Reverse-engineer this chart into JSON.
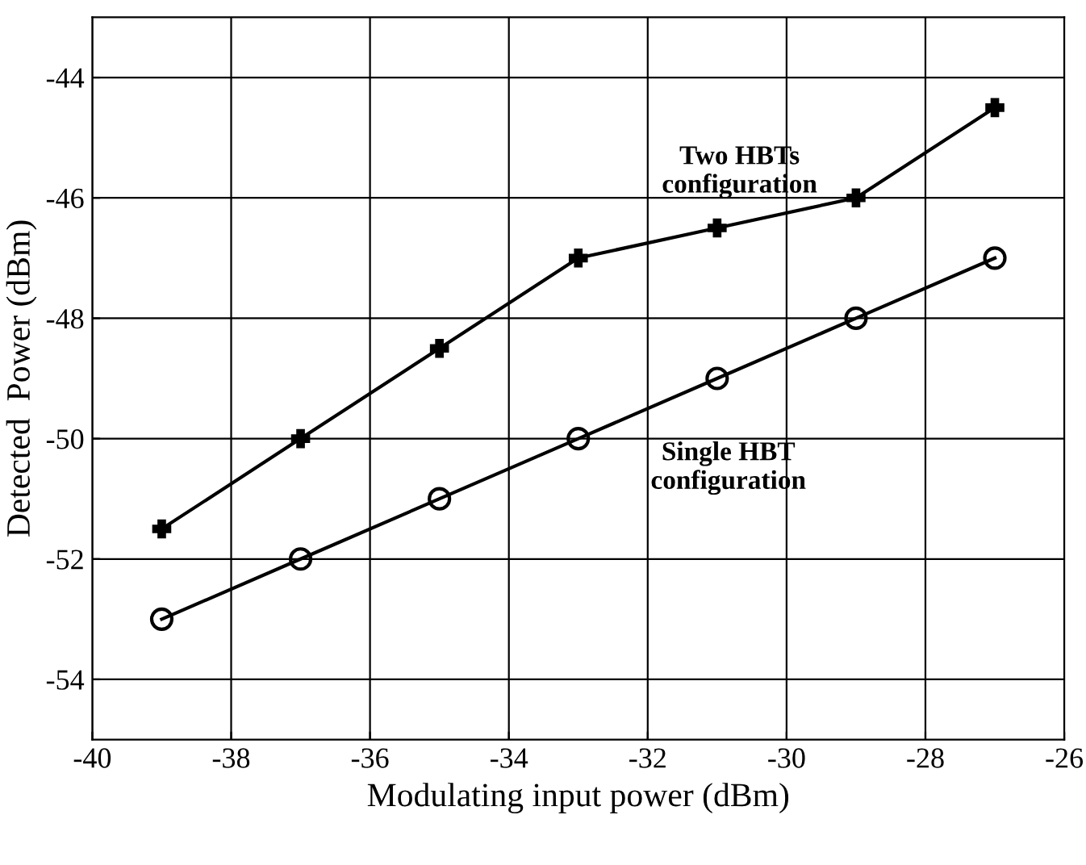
{
  "chart_data": {
    "type": "line",
    "xlabel": "Modulating input power (dBm)",
    "ylabel": "Detected  Power (dBm)",
    "x": [
      -39,
      -37,
      -35,
      -33,
      -31,
      -29,
      -27
    ],
    "series": [
      {
        "name": "Two HBTs\nconfiguration",
        "color": "#000000",
        "marker": "cross",
        "values": [
          -51.5,
          -50,
          -48.5,
          -47,
          -46.5,
          -46,
          -44.5
        ]
      },
      {
        "name": "Single HBT\nconfiguration",
        "color": "#000000",
        "marker": "circle",
        "values": [
          -53,
          -52,
          -51,
          -50,
          -49,
          -48,
          -47
        ]
      }
    ],
    "xlim": [
      -40,
      -26
    ],
    "xticks": [
      -40,
      -38,
      -36,
      -34,
      -32,
      -30,
      -28,
      -26
    ],
    "ylim": [
      -55,
      -43
    ],
    "yticks": [
      -54,
      -52,
      -50,
      -48,
      -46,
      -44
    ],
    "grid": true,
    "line_style": "solid"
  }
}
